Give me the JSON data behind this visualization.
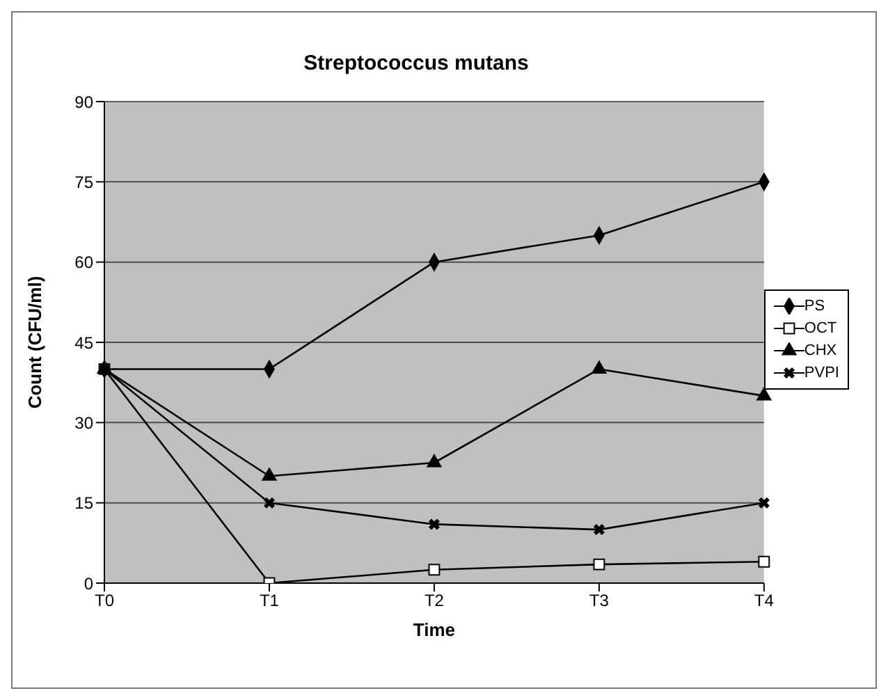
{
  "chart_data": {
    "type": "line",
    "title": "Streptococcus mutans",
    "xlabel": "Time",
    "ylabel": "Count (CFU/ml)",
    "categories": [
      "T0",
      "T1",
      "T2",
      "T3",
      "T4"
    ],
    "series": [
      {
        "name": "PS",
        "color": "#000000",
        "marker": "diamond",
        "values": [
          40,
          40,
          60,
          65,
          75
        ]
      },
      {
        "name": "OCT",
        "color": "#000000",
        "marker": "square",
        "values": [
          40,
          0,
          2.5,
          3.5,
          4
        ]
      },
      {
        "name": "CHX",
        "color": "#000000",
        "marker": "triangle",
        "values": [
          40,
          20,
          22.5,
          40,
          35
        ]
      },
      {
        "name": "PVPI",
        "color": "#000000",
        "marker": "cross",
        "values": [
          40,
          15,
          11,
          10,
          15
        ]
      }
    ],
    "ylim": [
      0,
      90
    ],
    "yticks": [
      0,
      15,
      30,
      45,
      60,
      75,
      90
    ],
    "grid": "y",
    "legend": "right"
  }
}
